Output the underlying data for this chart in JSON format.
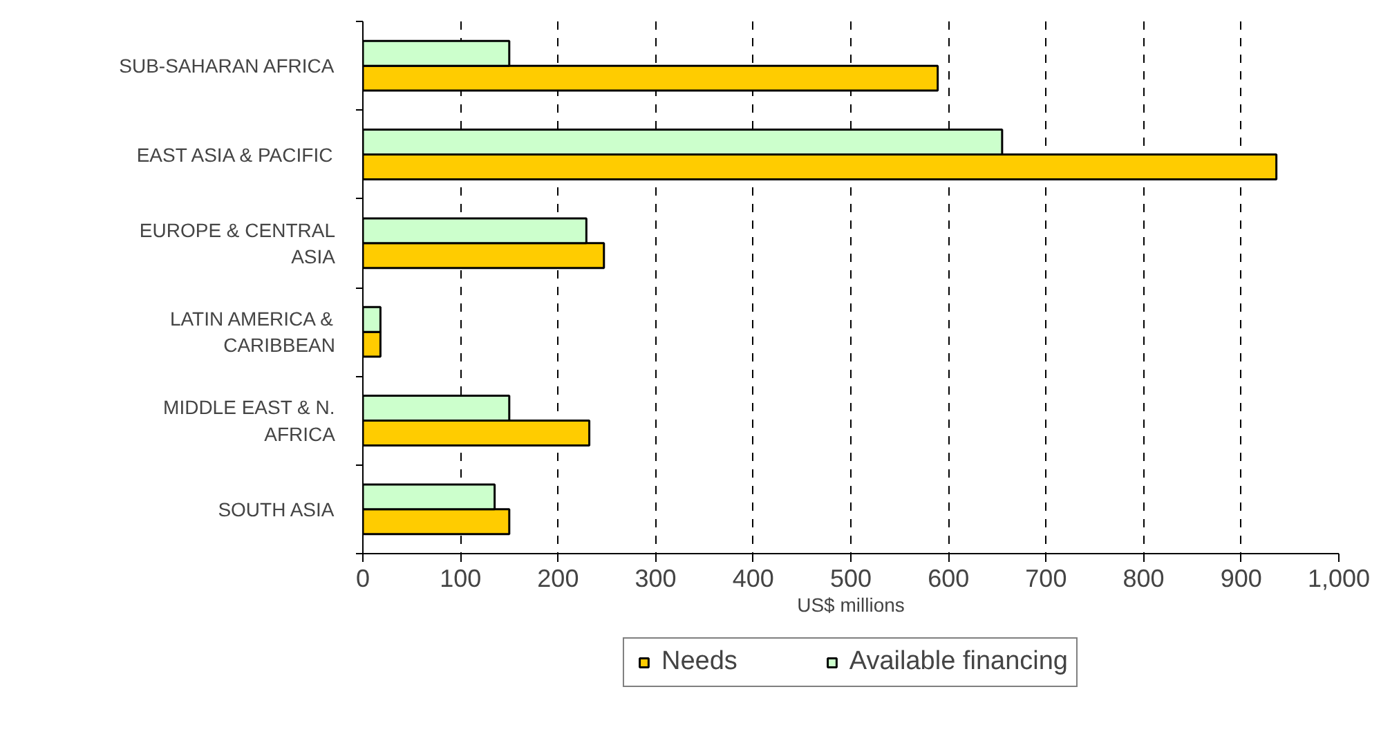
{
  "chart_data": {
    "type": "bar",
    "orientation": "horizontal",
    "xlabel": "US$ millions",
    "categories": [
      "SUB-SAHARAN AFRICA",
      "EAST ASIA & PACIFIC",
      "EUROPE & CENTRAL ASIA",
      "LATIN AMERICA & CARIBBEAN",
      "MIDDLE EAST & N. AFRICA",
      "SOUTH ASIA"
    ],
    "series": [
      {
        "name": "Needs",
        "color": "#ffcc00",
        "values": [
          589,
          936,
          247,
          18,
          232,
          150
        ]
      },
      {
        "name": "Available financing",
        "color": "#ccffcc",
        "values": [
          150,
          655,
          229,
          18,
          150,
          135
        ]
      }
    ],
    "xlim": [
      0,
      1000
    ],
    "xticks": [
      0,
      100,
      200,
      300,
      400,
      500,
      600,
      700,
      800,
      900,
      {
        "value": 1000,
        "label": "1,000"
      }
    ],
    "grid": "x",
    "legend": "bottom"
  }
}
